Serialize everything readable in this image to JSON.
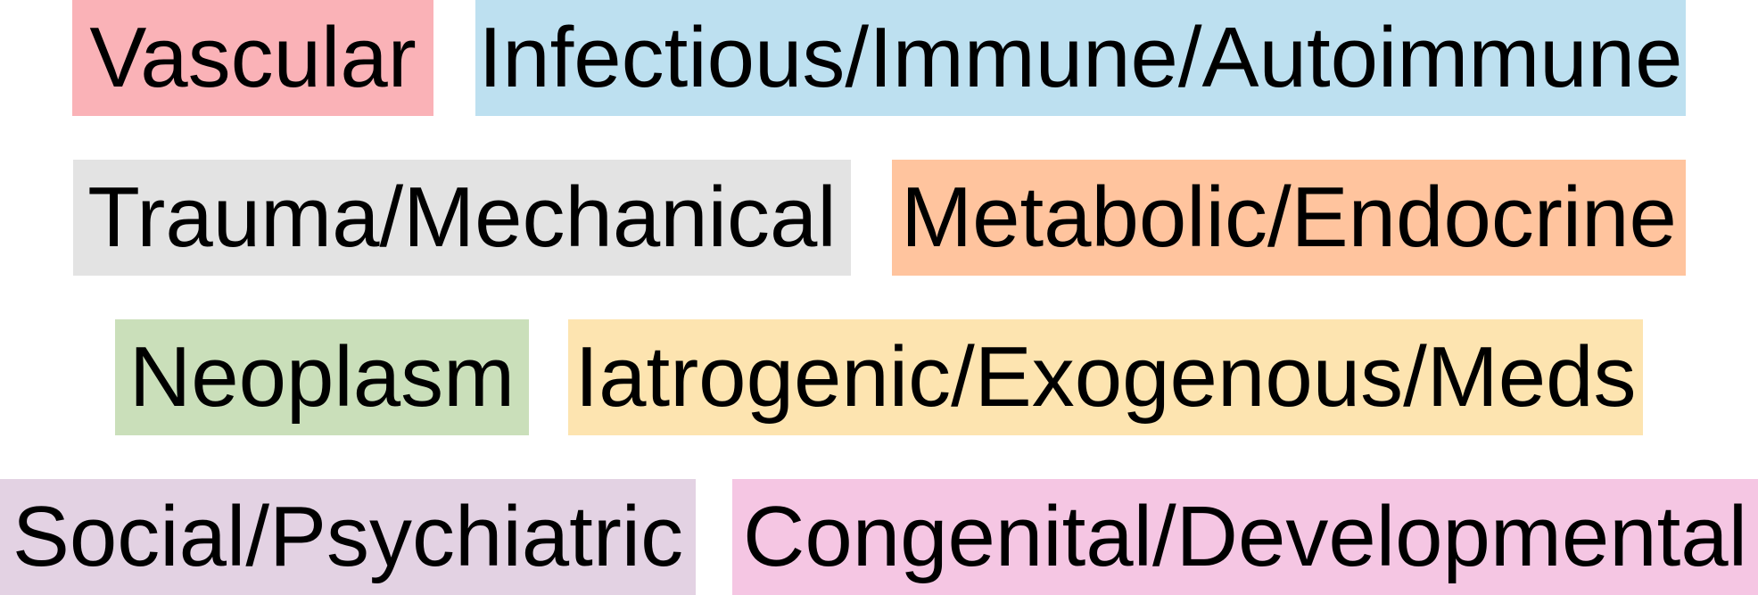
{
  "categories": [
    {
      "id": "vascular",
      "label": "Vascular",
      "color": "#fab2b7"
    },
    {
      "id": "infectious",
      "label": "Infectious/Immune/Autoimmune",
      "color": "#bde0f0"
    },
    {
      "id": "trauma",
      "label": "Trauma/Mechanical",
      "color": "#e3e3e3"
    },
    {
      "id": "metabolic",
      "label": "Metabolic/Endocrine",
      "color": "#ffc49e"
    },
    {
      "id": "neoplasm",
      "label": "Neoplasm",
      "color": "#cadfba"
    },
    {
      "id": "iatrogenic",
      "label": "Iatrogenic/Exogenous/Meds",
      "color": "#fde4b0"
    },
    {
      "id": "social",
      "label": "Social/Psychiatric",
      "color": "#e3d2e3"
    },
    {
      "id": "congenital",
      "label": "Congenital/Developmental",
      "color": "#f5c6e3"
    }
  ]
}
